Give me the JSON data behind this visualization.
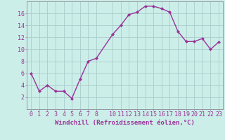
{
  "x": [
    0,
    1,
    2,
    3,
    4,
    5,
    6,
    7,
    8,
    10,
    11,
    12,
    13,
    14,
    15,
    16,
    17,
    18,
    19,
    20,
    21,
    22,
    23
  ],
  "y": [
    6.0,
    3.0,
    4.0,
    3.0,
    3.0,
    1.8,
    5.0,
    8.0,
    8.5,
    12.5,
    14.0,
    15.8,
    16.2,
    17.2,
    17.2,
    16.8,
    16.2,
    13.0,
    11.3,
    11.3,
    11.8,
    10.0,
    11.2
  ],
  "line_color": "#993399",
  "marker": "D",
  "marker_size": 2.0,
  "bg_color": "#cceee8",
  "grid_color": "#aacccc",
  "xlabel": "Windchill (Refroidissement éolien,°C)",
  "xlim": [
    -0.5,
    23.5
  ],
  "ylim": [
    0,
    18
  ],
  "yticks": [
    2,
    4,
    6,
    8,
    10,
    12,
    14,
    16
  ],
  "xticks": [
    0,
    1,
    2,
    3,
    4,
    5,
    6,
    7,
    8,
    10,
    11,
    12,
    13,
    14,
    15,
    16,
    17,
    18,
    19,
    20,
    21,
    22,
    23
  ],
  "xlabel_fontsize": 6.5,
  "tick_fontsize": 6.0,
  "line_width": 1.0,
  "spine_color": "#888899"
}
